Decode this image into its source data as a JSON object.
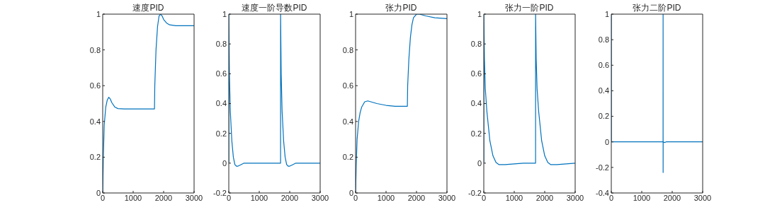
{
  "chart_data": [
    {
      "type": "line",
      "title": "速度PID",
      "color": "#0072bd",
      "x": [
        0,
        20,
        50,
        100,
        150,
        200,
        250,
        300,
        400,
        500,
        700,
        1000,
        1700,
        1710,
        1750,
        1800,
        1850,
        1900,
        1950,
        2000,
        2100,
        2200,
        2400,
        3000
      ],
      "values": [
        0,
        0.2,
        0.38,
        0.48,
        0.52,
        0.535,
        0.525,
        0.505,
        0.48,
        0.472,
        0.47,
        0.47,
        0.47,
        0.6,
        0.8,
        0.93,
        0.99,
        1,
        0.99,
        0.97,
        0.95,
        0.94,
        0.935,
        0.935
      ],
      "xlim": [
        0,
        3000
      ],
      "xticks": [
        0,
        1000,
        2000,
        3000
      ],
      "ylim": [
        0,
        1
      ],
      "yticks": [
        0,
        0.2,
        0.4,
        0.6,
        0.8,
        1
      ],
      "grid": false
    },
    {
      "type": "line",
      "title": "速度一阶导数PID",
      "color": "#0072bd",
      "x": [
        0,
        1,
        20,
        50,
        100,
        150,
        200,
        250,
        300,
        400,
        500,
        700,
        1700,
        1701,
        1720,
        1750,
        1800,
        1850,
        1900,
        1950,
        2000,
        2100,
        2200,
        3000
      ],
      "values": [
        0,
        1,
        0.6,
        0.35,
        0.15,
        0.04,
        -0.01,
        -0.02,
        -0.02,
        -0.01,
        0,
        0,
        0,
        1,
        0.6,
        0.35,
        0.15,
        0.04,
        -0.01,
        -0.02,
        -0.02,
        -0.01,
        0,
        0
      ],
      "xlim": [
        0,
        3000
      ],
      "xticks": [
        0,
        1000,
        2000,
        3000
      ],
      "ylim": [
        -0.2,
        1
      ],
      "yticks": [
        -0.2,
        0,
        0.2,
        0.4,
        0.6,
        0.8,
        1
      ],
      "grid": false
    },
    {
      "type": "line",
      "title": "张力PID",
      "color": "#0072bd",
      "x": [
        0,
        20,
        50,
        100,
        150,
        200,
        300,
        400,
        500,
        700,
        1000,
        1300,
        1700,
        1710,
        1750,
        1800,
        1850,
        1900,
        2000,
        2100,
        2300,
        2600,
        3000
      ],
      "values": [
        0,
        0.15,
        0.3,
        0.4,
        0.45,
        0.48,
        0.51,
        0.515,
        0.51,
        0.5,
        0.49,
        0.485,
        0.485,
        0.6,
        0.75,
        0.87,
        0.94,
        0.98,
        1,
        1,
        0.99,
        0.98,
        0.975
      ],
      "xlim": [
        0,
        3000
      ],
      "xticks": [
        0,
        1000,
        2000,
        3000
      ],
      "ylim": [
        0,
        1
      ],
      "yticks": [
        0,
        0.2,
        0.4,
        0.6,
        0.8,
        1
      ],
      "grid": false
    },
    {
      "type": "line",
      "title": "张力一阶PID",
      "color": "#0072bd",
      "x": [
        0,
        1,
        20,
        50,
        100,
        150,
        200,
        300,
        400,
        500,
        700,
        1000,
        1300,
        1700,
        1701,
        1720,
        1750,
        1800,
        1900,
        2000,
        2100,
        2200,
        2400,
        2700,
        3000
      ],
      "values": [
        0,
        1,
        0.7,
        0.5,
        0.35,
        0.25,
        0.15,
        0.05,
        0.005,
        -0.01,
        -0.01,
        -0.005,
        0,
        0,
        1,
        0.7,
        0.5,
        0.35,
        0.15,
        0.05,
        0.005,
        -0.01,
        -0.01,
        -0.005,
        0
      ],
      "xlim": [
        0,
        3000
      ],
      "xticks": [
        0,
        1000,
        2000,
        3000
      ],
      "ylim": [
        -0.2,
        1
      ],
      "yticks": [
        -0.2,
        0,
        0.2,
        0.4,
        0.6,
        0.8,
        1
      ],
      "grid": false
    },
    {
      "type": "line",
      "title": "张力二阶PID",
      "color": "#0072bd",
      "x": [
        0,
        1,
        2,
        1700,
        1701,
        1702,
        1703,
        1750,
        1800,
        3000
      ],
      "values": [
        0,
        1,
        0,
        0,
        1,
        -0.24,
        0,
        -0.005,
        0,
        0
      ],
      "xlim": [
        0,
        3000
      ],
      "xticks": [
        0,
        1000,
        2000,
        3000
      ],
      "ylim": [
        -0.4,
        1
      ],
      "yticks": [
        -0.4,
        -0.2,
        0,
        0.2,
        0.4,
        0.6,
        0.8,
        1
      ],
      "grid": false
    }
  ]
}
